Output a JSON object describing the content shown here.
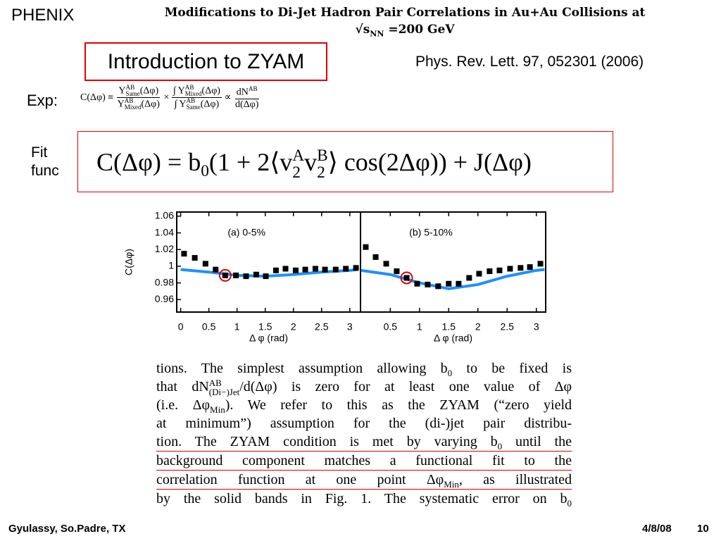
{
  "header": {
    "label": "PHENIX",
    "paper_title": [
      {
        "text": "Modifications to Di-Jet Hadron Pair Correlations in Au+Au Collisions at"
      }
    ],
    "energy": [
      {
        "text": "√s"
      },
      {
        "sub": "NN"
      },
      {
        "text": " =200 GeV"
      }
    ]
  },
  "slide_title": "Introduction to ZYAM",
  "reference": "Phys. Rev. Lett. 97, 052301 (2006)",
  "exp_label": "Exp:",
  "exp_formula": [
    {
      "text": "C(Δφ) ≡ "
    },
    {
      "num": [
        {
          "text": "Y"
        },
        {
          "sup": "AB",
          "sub": "Same"
        },
        {
          "text": "(Δφ)"
        }
      ],
      "den": [
        {
          "text": "Y"
        },
        {
          "sup": "AB",
          "sub": "Mixed"
        },
        {
          "text": "(Δφ)"
        }
      ]
    },
    {
      "text": " × "
    },
    {
      "num": [
        {
          "text": "∫ Y"
        },
        {
          "sup": "AB",
          "sub": "Mixed"
        },
        {
          "text": "(Δφ)"
        }
      ],
      "den": [
        {
          "text": "∫ Y"
        },
        {
          "sup": "AB",
          "sub": "Same"
        },
        {
          "text": "(Δφ)"
        }
      ]
    },
    {
      "text": " ∝ "
    },
    {
      "num": [
        {
          "text": "dN"
        },
        {
          "sup": "AB"
        }
      ],
      "den": [
        {
          "text": "d(Δφ)"
        }
      ]
    }
  ],
  "fit_label": "Fit func",
  "fit_formula": [
    {
      "text": "C(Δφ) = b"
    },
    {
      "sub": "0"
    },
    {
      "text": "(1 + 2⟨v"
    },
    {
      "sup": "A",
      "sub": "2"
    },
    {
      "text": "v"
    },
    {
      "sup": "B",
      "sub": "2"
    },
    {
      "text": "⟩ cos(2Δφ)) + J(Δφ)"
    }
  ],
  "chart_data": [
    {
      "type": "scatter",
      "annotation": "(a) 0-5%",
      "x_label": "Δ φ (rad)",
      "y_label": "C(Δφ)",
      "xlim": [
        -0.07,
        3.19
      ],
      "ylim": [
        0.945,
        1.065
      ],
      "xticks": [
        0,
        0.5,
        1,
        1.5,
        2,
        2.5,
        3
      ],
      "yticks": [
        0.96,
        0.98,
        1,
        1.02,
        1.04,
        1.06
      ],
      "points": {
        "color": "#000000",
        "x": [
          0.06,
          0.25,
          0.44,
          0.62,
          0.79,
          0.98,
          1.16,
          1.34,
          1.51,
          1.69,
          1.86,
          2.04,
          2.21,
          2.39,
          2.56,
          2.75,
          2.93,
          3.11
        ],
        "y": [
          1.015,
          1.01,
          1.003,
          0.996,
          0.989,
          0.989,
          0.988,
          0.99,
          0.988,
          0.995,
          0.997,
          0.995,
          0.996,
          0.997,
          0.996,
          0.996,
          0.997,
          0.998
        ]
      },
      "band": {
        "color": "#1e90ff",
        "x": [
          0,
          0.5,
          1,
          1.5,
          2,
          2.5,
          3,
          3.14
        ],
        "y": [
          0.996,
          0.993,
          0.989,
          0.988,
          0.99,
          0.993,
          0.995,
          0.996
        ]
      },
      "zyam": {
        "color": "#e00000",
        "x": 0.79,
        "y": 0.989
      }
    },
    {
      "type": "scatter",
      "annotation": "(b) 5-10%",
      "x_label": "Δ φ (rad)",
      "xlim": [
        -0.01,
        3.16
      ],
      "ylim": [
        0.945,
        1.065
      ],
      "xticks": [
        0.5,
        1,
        1.5,
        2,
        2.5,
        3
      ],
      "points": {
        "color": "#000000",
        "x": [
          0.08,
          0.25,
          0.43,
          0.61,
          0.78,
          0.96,
          1.14,
          1.32,
          1.5,
          1.67,
          1.85,
          2.02,
          2.2,
          2.37,
          2.55,
          2.73,
          2.89,
          3.07
        ],
        "y": [
          1.023,
          1.011,
          1.003,
          0.994,
          0.986,
          0.979,
          0.978,
          0.976,
          0.979,
          0.979,
          0.986,
          0.991,
          0.994,
          0.995,
          0.997,
          0.998,
          0.999,
          1.003
        ]
      },
      "band": {
        "color": "#1e90ff",
        "x": [
          0,
          0.5,
          1,
          1.5,
          2,
          2.5,
          3,
          3.14
        ],
        "y": [
          0.995,
          0.99,
          0.98,
          0.973,
          0.978,
          0.988,
          0.995,
          0.996
        ]
      },
      "zyam": {
        "color": "#e00000",
        "x": 0.78,
        "y": 0.986
      }
    }
  ],
  "paragraph": [
    {
      "tokens": [
        {
          "text": "tions. The simplest assumption allowing b"
        },
        {
          "sub": "0"
        },
        {
          "text": " to be fixed is"
        }
      ]
    },
    {
      "tokens": [
        {
          "text": "that dN"
        },
        {
          "sup": "AB",
          "sub": "(Di−)Jet"
        },
        {
          "text": "/d(Δφ) is zero for at least one value of Δφ"
        }
      ]
    },
    {
      "tokens": [
        {
          "text": "(i.e. Δφ"
        },
        {
          "sub": "Min"
        },
        {
          "text": "). We refer to this as the ZYAM (“zero yield"
        }
      ]
    },
    {
      "tokens": [
        {
          "text": "at minimum”) assumption for the (di-)jet pair distribu-"
        }
      ]
    },
    {
      "tokens": [
        {
          "text": "tion. The ZYAM condition is met by varying b"
        },
        {
          "sub": "0"
        },
        {
          "text": " until the"
        }
      ],
      "underline": true
    },
    {
      "tokens": [
        {
          "text": "background component matches a functional fit to the"
        }
      ],
      "underline": true
    },
    {
      "tokens": [
        {
          "text": "correlation function at one point Δφ"
        },
        {
          "sub": "Min"
        },
        {
          "text": ", as illustrated"
        }
      ],
      "underline": true
    },
    {
      "tokens": [
        {
          "text": "by the solid bands in Fig. 1. The systematic error on b"
        },
        {
          "sub": "0"
        }
      ]
    }
  ],
  "footer": {
    "author": "Gyulassy, So.Padre, TX",
    "date": "4/8/08",
    "page": "10"
  }
}
